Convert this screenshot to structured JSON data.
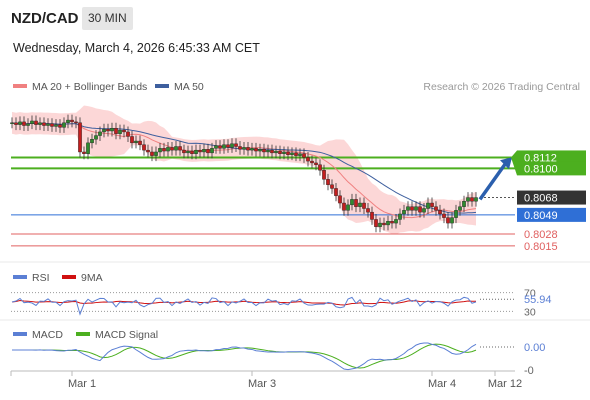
{
  "header": {
    "pair": "NZD/CAD",
    "timeframe": "30 MIN",
    "datetime": "Wednesday, March 4, 2026 6:45:33 AM CET"
  },
  "colors": {
    "bollinger_fill": "#fbd0d0",
    "ma20": "#f08080",
    "ma50": "#3e5f9e",
    "candle_up": "#2e8b2e",
    "candle_down": "#c41e1e",
    "resistance": "#4caf1f",
    "support_blue": "#2f6fd6",
    "support_red": "#e06060",
    "current_price": "#333333",
    "arrow": "#2b5fad",
    "rsi": "#5b7fd4",
    "rsi_ma": "#d01010",
    "macd": "#5b7fd4",
    "macd_signal": "#4caf1f"
  },
  "chart_data": [
    {
      "type": "line",
      "panel": "price",
      "legend": {
        "placement": "top-left",
        "items": [
          {
            "label": "MA 20 + Bollinger Bands",
            "color": "#f08080"
          },
          {
            "label": "MA 50",
            "color": "#3e5f9e"
          }
        ]
      },
      "credit": "Research © 2026 Trading Central",
      "ylim": [
        0.8005,
        0.8175
      ],
      "levels": [
        {
          "value": 0.8112,
          "label": "0.8112",
          "kind": "resistance",
          "color": "#4caf1f"
        },
        {
          "value": 0.81,
          "label": "0.8100",
          "kind": "resistance",
          "color": "#4caf1f"
        },
        {
          "value": 0.8068,
          "label": "0.8068",
          "kind": "current",
          "color": "#333333"
        },
        {
          "value": 0.8049,
          "label": "0.8049",
          "kind": "support",
          "color": "#2f6fd6"
        },
        {
          "value": 0.8028,
          "label": "0.8028",
          "kind": "support",
          "color": "#e06060"
        },
        {
          "value": 0.8015,
          "label": "0.8015",
          "kind": "support",
          "color": "#e06060"
        }
      ],
      "x_ticks": [
        {
          "t": 72,
          "label": "Mar 1"
        },
        {
          "t": 252,
          "label": "Mar 3"
        },
        {
          "t": 432,
          "label": "Mar 4"
        },
        {
          "t": 495,
          "label": "Mar 12"
        }
      ],
      "projection": {
        "from": [
          480,
          0.8066
        ],
        "to": [
          510,
          0.811
        ]
      },
      "ohlc_close": [
        {
          "t": 12,
          "c": 0.815
        },
        {
          "t": 16,
          "c": 0.8148
        },
        {
          "t": 20,
          "c": 0.8151
        },
        {
          "t": 24,
          "c": 0.8147
        },
        {
          "t": 28,
          "c": 0.8149
        },
        {
          "t": 32,
          "c": 0.8152
        },
        {
          "t": 36,
          "c": 0.8148
        },
        {
          "t": 40,
          "c": 0.815
        },
        {
          "t": 44,
          "c": 0.8147
        },
        {
          "t": 48,
          "c": 0.8149
        },
        {
          "t": 52,
          "c": 0.8146
        },
        {
          "t": 56,
          "c": 0.8148
        },
        {
          "t": 60,
          "c": 0.8145
        },
        {
          "t": 64,
          "c": 0.815
        },
        {
          "t": 68,
          "c": 0.8153
        },
        {
          "t": 72,
          "c": 0.8151
        },
        {
          "t": 76,
          "c": 0.815
        },
        {
          "t": 80,
          "c": 0.8118
        },
        {
          "t": 84,
          "c": 0.8116
        },
        {
          "t": 88,
          "c": 0.8128
        },
        {
          "t": 92,
          "c": 0.8132
        },
        {
          "t": 96,
          "c": 0.8136
        },
        {
          "t": 100,
          "c": 0.814
        },
        {
          "t": 104,
          "c": 0.8143
        },
        {
          "t": 108,
          "c": 0.8141
        },
        {
          "t": 112,
          "c": 0.8144
        },
        {
          "t": 116,
          "c": 0.8138
        },
        {
          "t": 120,
          "c": 0.8142
        },
        {
          "t": 124,
          "c": 0.814
        },
        {
          "t": 128,
          "c": 0.8135
        },
        {
          "t": 132,
          "c": 0.8128
        },
        {
          "t": 136,
          "c": 0.813
        },
        {
          "t": 140,
          "c": 0.8126
        },
        {
          "t": 144,
          "c": 0.812
        },
        {
          "t": 148,
          "c": 0.8118
        },
        {
          "t": 152,
          "c": 0.8114
        },
        {
          "t": 156,
          "c": 0.8118
        },
        {
          "t": 160,
          "c": 0.8122
        },
        {
          "t": 164,
          "c": 0.8119
        },
        {
          "t": 168,
          "c": 0.8123
        },
        {
          "t": 172,
          "c": 0.812
        },
        {
          "t": 176,
          "c": 0.8124
        },
        {
          "t": 180,
          "c": 0.812
        },
        {
          "t": 184,
          "c": 0.8117
        },
        {
          "t": 188,
          "c": 0.8119
        },
        {
          "t": 192,
          "c": 0.8116
        },
        {
          "t": 196,
          "c": 0.812
        },
        {
          "t": 200,
          "c": 0.8118
        },
        {
          "t": 204,
          "c": 0.8121
        },
        {
          "t": 208,
          "c": 0.8117
        },
        {
          "t": 212,
          "c": 0.8122
        },
        {
          "t": 216,
          "c": 0.8125
        },
        {
          "t": 220,
          "c": 0.8122
        },
        {
          "t": 224,
          "c": 0.8126
        },
        {
          "t": 228,
          "c": 0.8123
        },
        {
          "t": 232,
          "c": 0.8127
        },
        {
          "t": 236,
          "c": 0.8124
        },
        {
          "t": 240,
          "c": 0.8121
        },
        {
          "t": 244,
          "c": 0.8123
        },
        {
          "t": 248,
          "c": 0.812
        },
        {
          "t": 252,
          "c": 0.8122
        },
        {
          "t": 256,
          "c": 0.8119
        },
        {
          "t": 260,
          "c": 0.8121
        },
        {
          "t": 264,
          "c": 0.8118
        },
        {
          "t": 268,
          "c": 0.812
        },
        {
          "t": 272,
          "c": 0.8117
        },
        {
          "t": 276,
          "c": 0.8119
        },
        {
          "t": 280,
          "c": 0.8116
        },
        {
          "t": 284,
          "c": 0.8118
        },
        {
          "t": 288,
          "c": 0.8115
        },
        {
          "t": 292,
          "c": 0.8117
        },
        {
          "t": 296,
          "c": 0.8114
        },
        {
          "t": 300,
          "c": 0.8116
        },
        {
          "t": 304,
          "c": 0.8112
        },
        {
          "t": 308,
          "c": 0.8108
        },
        {
          "t": 312,
          "c": 0.8106
        },
        {
          "t": 316,
          "c": 0.8104
        },
        {
          "t": 320,
          "c": 0.8098
        },
        {
          "t": 324,
          "c": 0.8088
        },
        {
          "t": 328,
          "c": 0.8082
        },
        {
          "t": 332,
          "c": 0.8078
        },
        {
          "t": 336,
          "c": 0.807
        },
        {
          "t": 340,
          "c": 0.8062
        },
        {
          "t": 344,
          "c": 0.8054
        },
        {
          "t": 348,
          "c": 0.806
        },
        {
          "t": 352,
          "c": 0.8066
        },
        {
          "t": 356,
          "c": 0.8058
        },
        {
          "t": 360,
          "c": 0.8062
        },
        {
          "t": 364,
          "c": 0.8056
        },
        {
          "t": 368,
          "c": 0.8052
        },
        {
          "t": 372,
          "c": 0.8044
        },
        {
          "t": 376,
          "c": 0.8036
        },
        {
          "t": 380,
          "c": 0.804
        },
        {
          "t": 384,
          "c": 0.8038
        },
        {
          "t": 388,
          "c": 0.8042
        },
        {
          "t": 392,
          "c": 0.804
        },
        {
          "t": 396,
          "c": 0.8044
        },
        {
          "t": 400,
          "c": 0.805
        },
        {
          "t": 404,
          "c": 0.8054
        },
        {
          "t": 408,
          "c": 0.8058
        },
        {
          "t": 412,
          "c": 0.8054
        },
        {
          "t": 416,
          "c": 0.8058
        },
        {
          "t": 420,
          "c": 0.8052
        },
        {
          "t": 424,
          "c": 0.8056
        },
        {
          "t": 428,
          "c": 0.8062
        },
        {
          "t": 432,
          "c": 0.8058
        },
        {
          "t": 436,
          "c": 0.8054
        },
        {
          "t": 440,
          "c": 0.805
        },
        {
          "t": 444,
          "c": 0.8046
        },
        {
          "t": 448,
          "c": 0.804
        },
        {
          "t": 452,
          "c": 0.8046
        },
        {
          "t": 456,
          "c": 0.8054
        },
        {
          "t": 460,
          "c": 0.8058
        },
        {
          "t": 464,
          "c": 0.8064
        },
        {
          "t": 468,
          "c": 0.8068
        },
        {
          "t": 472,
          "c": 0.8064
        },
        {
          "t": 476,
          "c": 0.8068
        }
      ]
    },
    {
      "type": "line",
      "panel": "rsi",
      "legend": {
        "placement": "top-left",
        "items": [
          {
            "label": "RSI",
            "color": "#5b7fd4"
          },
          {
            "label": "9MA",
            "color": "#d01010"
          }
        ]
      },
      "ylim": [
        20,
        80
      ],
      "levels": [
        {
          "value": 70,
          "label": "70"
        },
        {
          "value": 30,
          "label": "30"
        }
      ],
      "current": {
        "value": 55.94,
        "label": "55.94"
      }
    },
    {
      "type": "line",
      "panel": "macd",
      "legend": {
        "placement": "top-left",
        "items": [
          {
            "label": "MACD",
            "color": "#5b7fd4"
          },
          {
            "label": "MACD Signal",
            "color": "#4caf1f"
          }
        ]
      },
      "levels": [
        {
          "value": 0.0,
          "label": "0.00"
        },
        {
          "value": -0.0,
          "label": "-0"
        }
      ]
    }
  ]
}
